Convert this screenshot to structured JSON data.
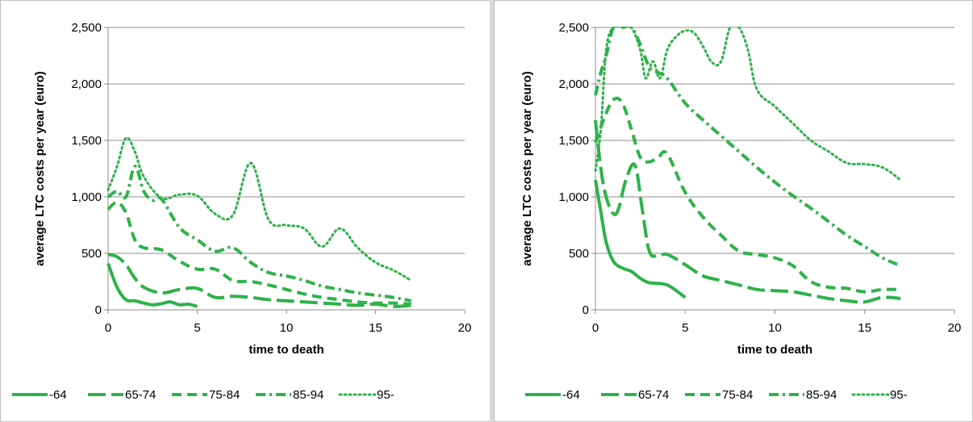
{
  "colors": {
    "series": "#2eb24a",
    "grid": "#8c8c8c",
    "axis": "#8c8c8c"
  },
  "chart_data": [
    {
      "type": "line",
      "xlabel": "time to death",
      "ylabel": "average LTC costs per year (euro)",
      "xlim": [
        0,
        20
      ],
      "ylim": [
        0,
        2500
      ],
      "xticks": [
        0,
        5,
        10,
        15,
        20
      ],
      "yticks": [
        0,
        500,
        1000,
        1500,
        2000,
        2500
      ],
      "xtick_labels": [
        "0",
        "5",
        "10",
        "15",
        "20"
      ],
      "ytick_labels": [
        "0",
        "500",
        "1,000",
        "1,500",
        "2,000",
        "2,500"
      ],
      "grid": "horizontal",
      "legend": "bottom",
      "series": [
        {
          "name": "-64",
          "dash": "solid",
          "x": [
            0,
            0.5,
            1,
            1.5,
            2,
            2.5,
            3,
            3.5,
            4,
            4.5,
            5
          ],
          "y": [
            410,
            200,
            90,
            80,
            60,
            45,
            55,
            70,
            45,
            50,
            30
          ]
        },
        {
          "name": "65-74",
          "dash": "longdash",
          "x": [
            0,
            0.5,
            1,
            1.5,
            2,
            3,
            4,
            5,
            6,
            7,
            8,
            9,
            10,
            11,
            12,
            13,
            14,
            15,
            16,
            17
          ],
          "y": [
            490,
            470,
            400,
            280,
            200,
            150,
            180,
            190,
            110,
            120,
            110,
            90,
            80,
            70,
            60,
            50,
            40,
            50,
            30,
            40
          ]
        },
        {
          "name": "75-84",
          "dash": "dash",
          "x": [
            0,
            0.5,
            1,
            1.5,
            2,
            3,
            4,
            5,
            6,
            7,
            8,
            9,
            10,
            11,
            12,
            13,
            14,
            15,
            16,
            17
          ],
          "y": [
            890,
            950,
            860,
            620,
            550,
            530,
            430,
            360,
            360,
            260,
            250,
            220,
            180,
            140,
            110,
            90,
            70,
            60,
            60,
            50
          ]
        },
        {
          "name": "85-94",
          "dash": "dashdot",
          "x": [
            0,
            0.5,
            1,
            1.5,
            2,
            2.5,
            3,
            4,
            5,
            6,
            7,
            8,
            9,
            10,
            11,
            12,
            13,
            14,
            15,
            16,
            17
          ],
          "y": [
            1000,
            1050,
            1000,
            1270,
            1050,
            970,
            980,
            730,
            620,
            520,
            550,
            420,
            330,
            300,
            260,
            210,
            180,
            150,
            130,
            110,
            80
          ]
        },
        {
          "name": "95-",
          "dash": "dot",
          "x": [
            0,
            0.5,
            1,
            1.5,
            2,
            3,
            4,
            5,
            6,
            7,
            8,
            9,
            10,
            11,
            12,
            13,
            14,
            15,
            16,
            17
          ],
          "y": [
            1060,
            1270,
            1520,
            1400,
            1180,
            990,
            1020,
            1010,
            850,
            840,
            1300,
            800,
            750,
            720,
            560,
            720,
            550,
            420,
            350,
            260
          ]
        }
      ]
    },
    {
      "type": "line",
      "xlabel": "time to death",
      "ylabel": "average LTC costs per year (euro)",
      "xlim": [
        0,
        20
      ],
      "ylim": [
        0,
        2500
      ],
      "xticks": [
        0,
        5,
        10,
        15,
        20
      ],
      "yticks": [
        0,
        500,
        1000,
        1500,
        2000,
        2500
      ],
      "xtick_labels": [
        "0",
        "5",
        "10",
        "15",
        "20"
      ],
      "ytick_labels": [
        "0",
        "500",
        "1,000",
        "1,500",
        "2,000",
        "2,500"
      ],
      "grid": "horizontal",
      "legend": "bottom",
      "series": [
        {
          "name": "-64",
          "dash": "solid",
          "x": [
            0,
            0.3,
            0.6,
            1,
            1.5,
            2,
            2.5,
            3,
            4,
            5
          ],
          "y": [
            1150,
            870,
            600,
            430,
            370,
            340,
            280,
            240,
            220,
            110
          ]
        },
        {
          "name": "65-74",
          "dash": "longdash",
          "x": [
            0,
            0.3,
            0.6,
            1,
            1.3,
            1.7,
            2.2,
            2.6,
            3,
            3.5,
            4,
            5,
            6,
            7,
            8,
            9,
            10,
            11,
            12,
            13,
            14,
            15,
            16,
            17
          ],
          "y": [
            1680,
            1250,
            1000,
            850,
            900,
            1150,
            1280,
            900,
            520,
            480,
            490,
            400,
            300,
            260,
            220,
            180,
            170,
            160,
            130,
            100,
            80,
            70,
            110,
            100
          ]
        },
        {
          "name": "75-84",
          "dash": "dash",
          "x": [
            0,
            0.5,
            1,
            1.5,
            2,
            2.5,
            3,
            3.5,
            4,
            5,
            6,
            7,
            8,
            9,
            10,
            11,
            12,
            13,
            14,
            15,
            16,
            17
          ],
          "y": [
            1480,
            1700,
            1860,
            1830,
            1600,
            1350,
            1310,
            1350,
            1380,
            1040,
            820,
            660,
            520,
            490,
            460,
            390,
            250,
            200,
            190,
            160,
            180,
            180
          ]
        },
        {
          "name": "85-94",
          "dash": "dashdot",
          "x": [
            0,
            0.3,
            0.6,
            1,
            1.5,
            2,
            2.5,
            3,
            3.5,
            4,
            5,
            6,
            7,
            8,
            9,
            10,
            11,
            12,
            13,
            14,
            15,
            16,
            17
          ],
          "y": [
            1900,
            2100,
            2250,
            2500,
            2500,
            2500,
            2350,
            2150,
            2100,
            2050,
            1830,
            1680,
            1540,
            1400,
            1260,
            1130,
            1010,
            900,
            780,
            660,
            560,
            460,
            390
          ]
        },
        {
          "name": "95-",
          "dash": "dot",
          "x": [
            0,
            0.3,
            0.6,
            1,
            1.5,
            2,
            2.5,
            2.8,
            3.2,
            3.6,
            4,
            4.5,
            5,
            5.5,
            6,
            6.5,
            7,
            7.5,
            8,
            8.5,
            9,
            10,
            11,
            12,
            13,
            14,
            15,
            16,
            17
          ],
          "y": [
            1230,
            1600,
            2300,
            2500,
            2500,
            2500,
            2300,
            2050,
            2200,
            2050,
            2300,
            2420,
            2470,
            2450,
            2330,
            2190,
            2200,
            2500,
            2500,
            2300,
            1950,
            1800,
            1650,
            1500,
            1400,
            1300,
            1290,
            1260,
            1150
          ]
        }
      ]
    }
  ]
}
